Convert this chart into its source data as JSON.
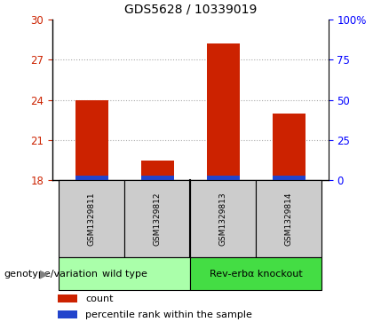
{
  "title": "GDS5628 / 10339019",
  "samples": [
    "GSM1329811",
    "GSM1329812",
    "GSM1329813",
    "GSM1329814"
  ],
  "red_values": [
    24.0,
    19.5,
    28.2,
    23.0
  ],
  "blue_values": [
    18.35,
    18.35,
    18.35,
    18.35
  ],
  "bar_bottom": 18.0,
  "ylim_left": [
    18,
    30
  ],
  "yticks_left": [
    18,
    21,
    24,
    27,
    30
  ],
  "yticks_right": [
    0,
    25,
    50,
    75,
    100
  ],
  "yticklabels_right": [
    "0",
    "25",
    "50",
    "75",
    "100%"
  ],
  "red_color": "#cc2200",
  "blue_color": "#2244cc",
  "bar_width": 0.5,
  "groups": [
    {
      "label": "wild type",
      "samples": [
        0,
        1
      ],
      "color": "#aaffaa"
    },
    {
      "label": "Rev-erbα knockout",
      "samples": [
        2,
        3
      ],
      "color": "#44dd44"
    }
  ],
  "xlabel_left": "genotype/variation",
  "legend_count": "count",
  "legend_percentile": "percentile rank within the sample",
  "sample_bg": "#cccccc",
  "grid_linestyle": ":"
}
